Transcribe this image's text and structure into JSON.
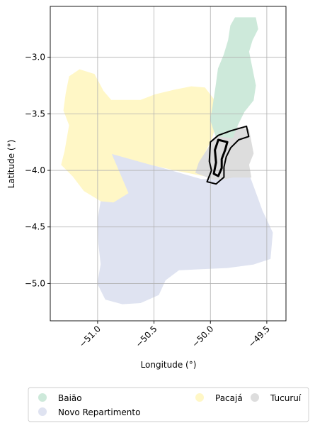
{
  "map": {
    "xlabel": "Longitude (°)",
    "ylabel": "Latitude (°)",
    "xlim": [
      -51.42,
      -49.33
    ],
    "ylim": [
      -5.33,
      -2.55
    ],
    "grid": true,
    "xticks": [
      {
        "value": -51.0,
        "label": "−51.0"
      },
      {
        "value": -50.5,
        "label": "−50.5"
      },
      {
        "value": -50.0,
        "label": "−50.0"
      },
      {
        "value": -49.5,
        "label": "−49.5"
      }
    ],
    "yticks": [
      {
        "value": -3.0,
        "label": "−3.0"
      },
      {
        "value": -3.5,
        "label": "−3.5"
      },
      {
        "value": -4.0,
        "label": "−4.0"
      },
      {
        "value": -4.5,
        "label": "−4.5"
      },
      {
        "value": -5.0,
        "label": "−5.0"
      }
    ],
    "regions": [
      {
        "name": "Novo Repartimento",
        "color": "#dfe3f1",
        "coords": [
          [
            -50.88,
            -3.85
          ],
          [
            -50.5,
            -3.96
          ],
          [
            -50.08,
            -4.08
          ],
          [
            -49.9,
            -4.08
          ],
          [
            -49.8,
            -4.06
          ],
          [
            -49.65,
            -4.06
          ],
          [
            -49.58,
            -4.25
          ],
          [
            -49.54,
            -4.36
          ],
          [
            -49.45,
            -4.55
          ],
          [
            -49.47,
            -4.78
          ],
          [
            -49.62,
            -4.83
          ],
          [
            -49.85,
            -4.86
          ],
          [
            -50.08,
            -4.87
          ],
          [
            -50.28,
            -4.88
          ],
          [
            -50.4,
            -4.97
          ],
          [
            -50.46,
            -5.1
          ],
          [
            -50.62,
            -5.17
          ],
          [
            -50.78,
            -5.18
          ],
          [
            -50.93,
            -5.14
          ],
          [
            -51.0,
            -5.0
          ],
          [
            -50.97,
            -4.83
          ],
          [
            -50.99,
            -4.65
          ],
          [
            -51.0,
            -4.45
          ],
          [
            -50.97,
            -4.27
          ],
          [
            -50.86,
            -4.28
          ],
          [
            -50.73,
            -4.2
          ],
          [
            -50.8,
            -4.05
          ]
        ]
      },
      {
        "name": "Pacajá",
        "color": "#fff7c6",
        "coords": [
          [
            -51.28,
            -3.32
          ],
          [
            -51.25,
            -3.17
          ],
          [
            -51.16,
            -3.11
          ],
          [
            -51.03,
            -3.15
          ],
          [
            -50.95,
            -3.3
          ],
          [
            -50.88,
            -3.38
          ],
          [
            -50.71,
            -3.38
          ],
          [
            -50.62,
            -3.38
          ],
          [
            -50.49,
            -3.33
          ],
          [
            -50.32,
            -3.29
          ],
          [
            -50.17,
            -3.26
          ],
          [
            -50.05,
            -3.27
          ],
          [
            -49.95,
            -3.4
          ],
          [
            -49.94,
            -3.55
          ],
          [
            -49.99,
            -3.72
          ],
          [
            -50.05,
            -3.84
          ],
          [
            -50.08,
            -3.97
          ],
          [
            -50.05,
            -4.05
          ],
          [
            -50.3,
            -4.0
          ],
          [
            -50.52,
            -3.95
          ],
          [
            -50.88,
            -3.85
          ],
          [
            -50.73,
            -4.2
          ],
          [
            -50.86,
            -4.28
          ],
          [
            -50.97,
            -4.27
          ],
          [
            -51.12,
            -4.18
          ],
          [
            -51.22,
            -4.05
          ],
          [
            -51.32,
            -3.95
          ],
          [
            -51.29,
            -3.83
          ],
          [
            -51.25,
            -3.6
          ],
          [
            -51.3,
            -3.47
          ]
        ]
      },
      {
        "name": "Baião",
        "color": "#cde9da",
        "coords": [
          [
            -49.68,
            -2.65
          ],
          [
            -49.6,
            -2.65
          ],
          [
            -49.58,
            -2.75
          ],
          [
            -49.63,
            -2.85
          ],
          [
            -49.66,
            -2.95
          ],
          [
            -49.63,
            -3.1
          ],
          [
            -49.6,
            -3.25
          ],
          [
            -49.62,
            -3.38
          ],
          [
            -49.7,
            -3.48
          ],
          [
            -49.76,
            -3.6
          ],
          [
            -49.8,
            -3.72
          ],
          [
            -49.95,
            -3.7
          ],
          [
            -50.0,
            -3.55
          ],
          [
            -49.98,
            -3.45
          ],
          [
            -49.95,
            -3.25
          ],
          [
            -49.93,
            -3.1
          ],
          [
            -49.88,
            -2.98
          ],
          [
            -49.84,
            -2.85
          ],
          [
            -49.82,
            -2.72
          ],
          [
            -49.78,
            -2.65
          ]
        ]
      },
      {
        "name": "Tucuruí",
        "color": "#dddddd",
        "coords": [
          [
            -49.95,
            -3.7
          ],
          [
            -49.8,
            -3.72
          ],
          [
            -49.76,
            -3.62
          ],
          [
            -49.66,
            -3.64
          ],
          [
            -49.62,
            -3.85
          ],
          [
            -49.66,
            -3.95
          ],
          [
            -49.64,
            -4.06
          ],
          [
            -49.8,
            -4.06
          ],
          [
            -49.9,
            -4.08
          ],
          [
            -49.97,
            -4.08
          ],
          [
            -50.05,
            -4.05
          ],
          [
            -50.13,
            -4.02
          ],
          [
            -50.1,
            -3.93
          ],
          [
            -50.03,
            -3.82
          ]
        ]
      }
    ],
    "highlight": {
      "color": "#000000",
      "outer": [
        [
          -50.0,
          -3.75
        ],
        [
          -49.93,
          -3.69
        ],
        [
          -49.82,
          -3.65
        ],
        [
          -49.68,
          -3.61
        ],
        [
          -49.66,
          -3.7
        ],
        [
          -49.75,
          -3.73
        ],
        [
          -49.82,
          -3.8
        ],
        [
          -49.86,
          -3.88
        ],
        [
          -49.88,
          -3.97
        ],
        [
          -49.88,
          -4.06
        ],
        [
          -49.95,
          -4.12
        ],
        [
          -50.03,
          -4.1
        ],
        [
          -49.99,
          -4.0
        ],
        [
          -50.01,
          -3.92
        ]
      ],
      "inner": [
        [
          -49.93,
          -3.73
        ],
        [
          -49.85,
          -3.75
        ],
        [
          -49.87,
          -3.82
        ],
        [
          -49.9,
          -3.9
        ],
        [
          -49.9,
          -3.98
        ],
        [
          -49.93,
          -4.05
        ],
        [
          -49.97,
          -4.03
        ],
        [
          -49.95,
          -3.93
        ],
        [
          -49.96,
          -3.82
        ]
      ]
    },
    "legend": {
      "placement": "below",
      "items": [
        {
          "label": "Baião",
          "color": "#cde9da"
        },
        {
          "label": "Novo Repartimento",
          "color": "#dfe3f1"
        },
        {
          "label": "Pacajá",
          "color": "#fff7c6"
        },
        {
          "label": "Tucuruí",
          "color": "#dddddd"
        }
      ]
    }
  }
}
